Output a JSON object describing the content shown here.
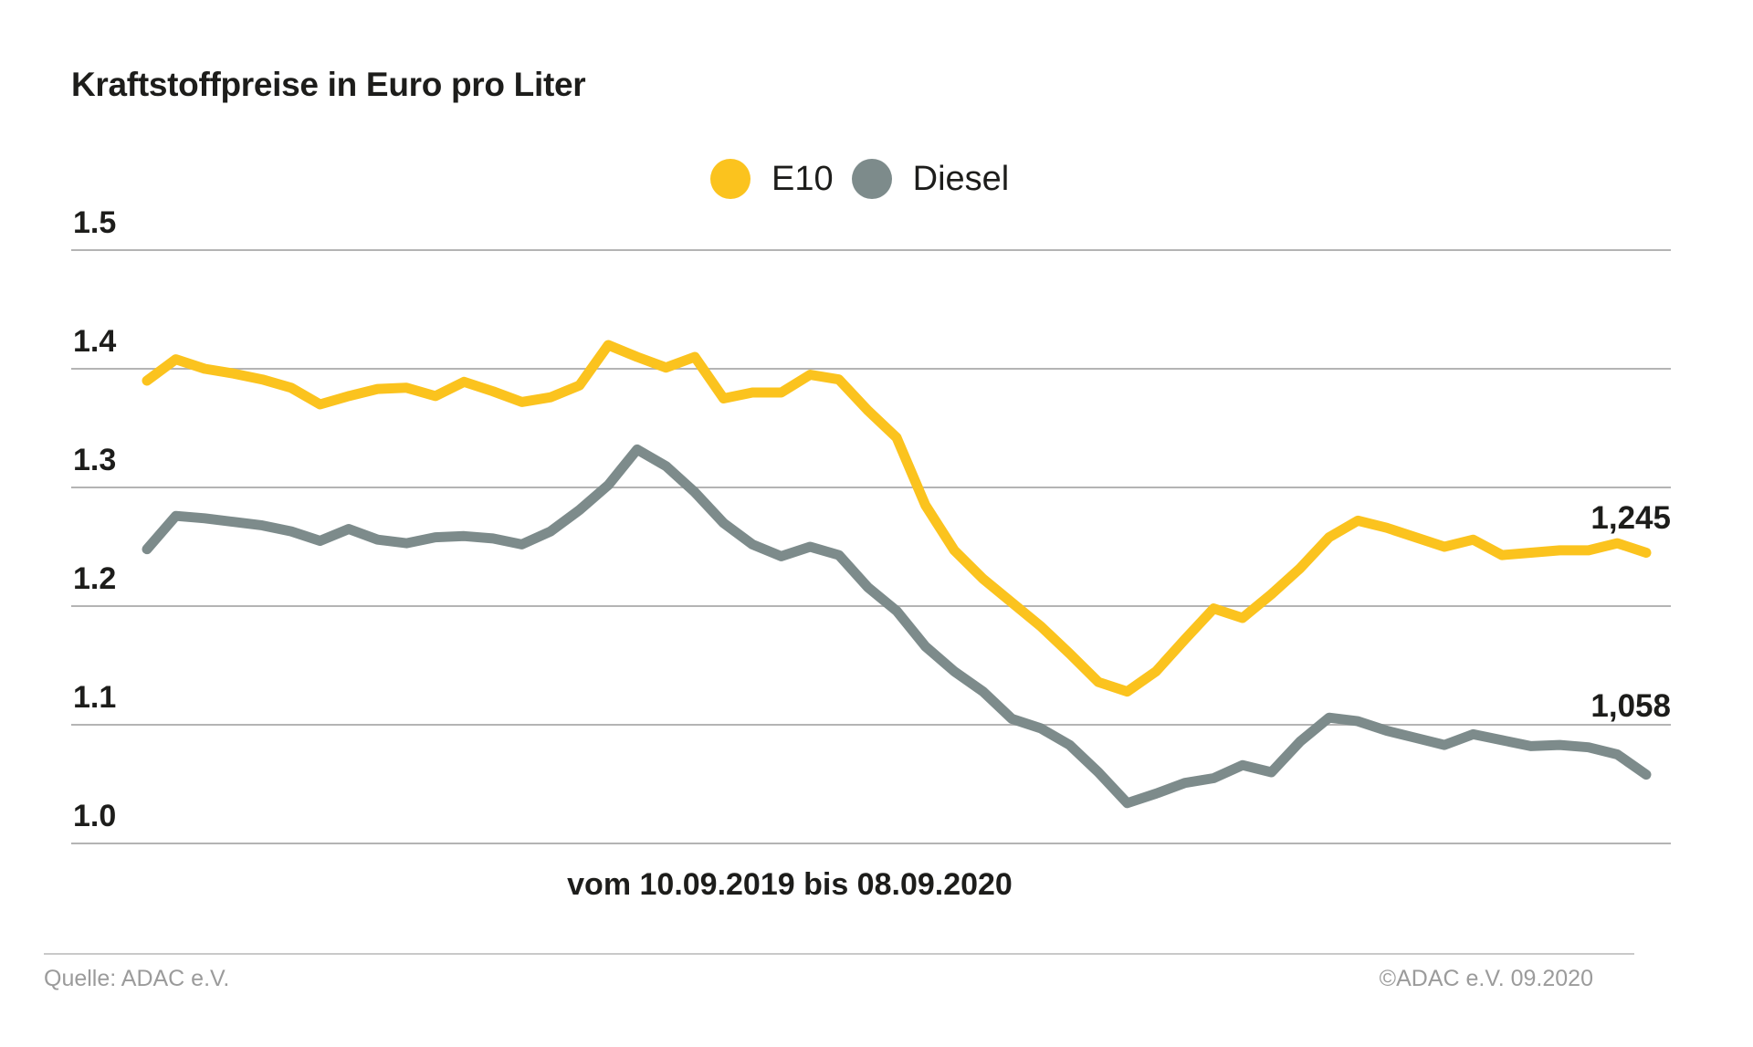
{
  "title": "Kraftstoffpreise in Euro pro Liter",
  "legend": {
    "items": [
      {
        "label": "E10",
        "color": "#FBC31E"
      },
      {
        "label": "Diesel",
        "color": "#7D8B8B"
      }
    ]
  },
  "xlabel": "vom 10.09.2019 bis 08.09.2020",
  "footer": {
    "source": "Quelle: ADAC e.V.",
    "copyright": "©ADAC e.V. 09.2020"
  },
  "chart_data": {
    "type": "line",
    "title": "Kraftstoffpreise in Euro pro Liter",
    "xlabel": "vom 10.09.2019 bis 08.09.2020",
    "ylabel": "Euro pro Liter",
    "x_range": [
      "10.09.2019",
      "08.09.2020"
    ],
    "x_unit": "week",
    "ylim": [
      1.0,
      1.5
    ],
    "yticks": [
      1.5,
      1.4,
      1.3,
      1.2,
      1.1,
      1.0
    ],
    "grid": true,
    "legend_position": "top-center",
    "series": [
      {
        "name": "E10",
        "color": "#FBC31E",
        "end_label": "1,245",
        "end_value": 1.245,
        "values": [
          1.39,
          1.408,
          1.4,
          1.396,
          1.391,
          1.384,
          1.37,
          1.377,
          1.383,
          1.384,
          1.377,
          1.389,
          1.381,
          1.372,
          1.376,
          1.386,
          1.42,
          1.41,
          1.401,
          1.41,
          1.375,
          1.38,
          1.38,
          1.395,
          1.391,
          1.365,
          1.342,
          1.285,
          1.247,
          1.223,
          1.203,
          1.183,
          1.16,
          1.136,
          1.128,
          1.145,
          1.172,
          1.198,
          1.19,
          1.21,
          1.232,
          1.258,
          1.272,
          1.266,
          1.258,
          1.25,
          1.256,
          1.243,
          1.245,
          1.247,
          1.247,
          1.253,
          1.245
        ]
      },
      {
        "name": "Diesel",
        "color": "#7D8B8B",
        "end_label": "1,058",
        "end_value": 1.058,
        "values": [
          1.248,
          1.276,
          1.274,
          1.271,
          1.268,
          1.263,
          1.255,
          1.265,
          1.256,
          1.253,
          1.258,
          1.259,
          1.257,
          1.252,
          1.263,
          1.281,
          1.302,
          1.332,
          1.318,
          1.296,
          1.27,
          1.252,
          1.242,
          1.25,
          1.243,
          1.216,
          1.196,
          1.166,
          1.145,
          1.128,
          1.105,
          1.097,
          1.083,
          1.06,
          1.034,
          1.042,
          1.051,
          1.055,
          1.066,
          1.06,
          1.086,
          1.106,
          1.103,
          1.095,
          1.089,
          1.083,
          1.092,
          1.087,
          1.082,
          1.083,
          1.081,
          1.075,
          1.058
        ]
      }
    ]
  }
}
